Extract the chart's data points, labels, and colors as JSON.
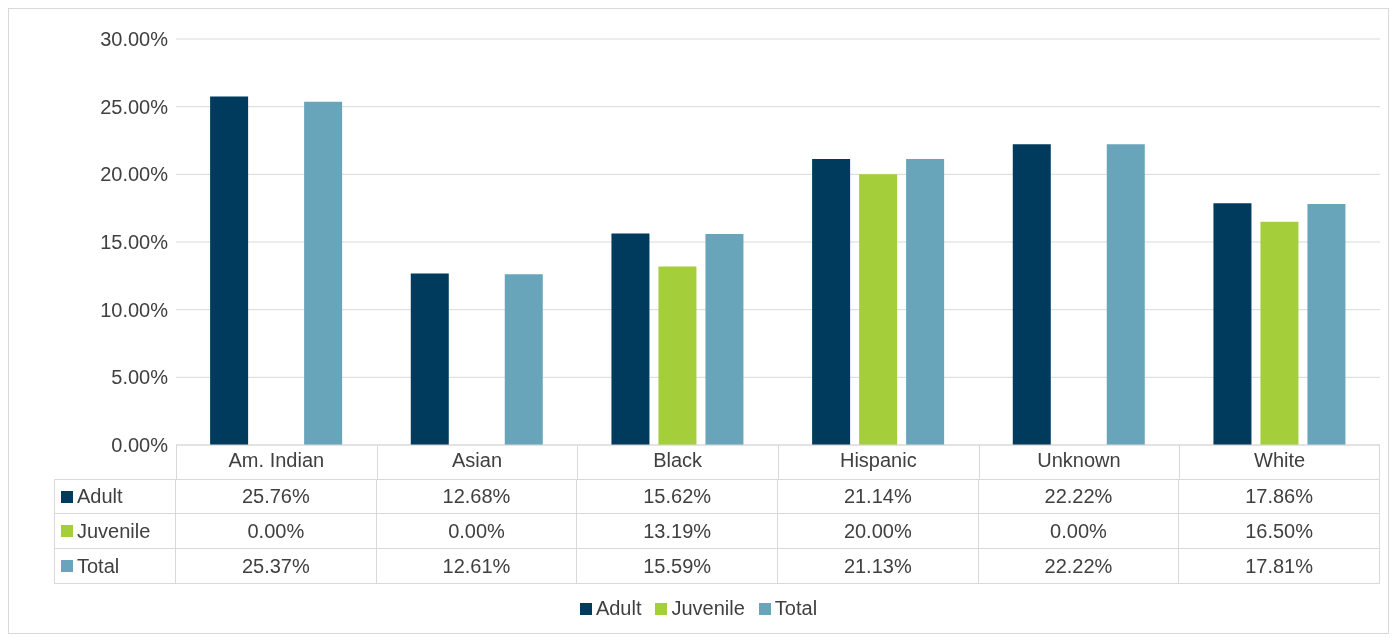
{
  "chart_data": {
    "type": "bar",
    "categories": [
      "Am. Indian",
      "Asian",
      "Black",
      "Hispanic",
      "Unknown",
      "White"
    ],
    "series": [
      {
        "name": "Adult",
        "color": "#003a5c",
        "values": [
          25.76,
          12.68,
          15.62,
          21.14,
          22.22,
          17.86
        ],
        "value_labels": [
          "25.76%",
          "12.68%",
          "15.62%",
          "21.14%",
          "22.22%",
          "17.86%"
        ]
      },
      {
        "name": "Juvenile",
        "color": "#a4cf3a",
        "values": [
          0,
          0,
          13.19,
          20,
          0,
          16.5
        ],
        "value_labels": [
          "0.00%",
          "0.00%",
          "13.19%",
          "20.00%",
          "0.00%",
          "16.50%"
        ]
      },
      {
        "name": "Total",
        "color": "#68a5bb",
        "values": [
          25.37,
          12.61,
          15.59,
          21.13,
          22.22,
          17.81
        ],
        "value_labels": [
          "25.37%",
          "12.61%",
          "15.59%",
          "21.13%",
          "22.22%",
          "17.81%"
        ]
      }
    ],
    "ylim": [
      0,
      30
    ],
    "yticks": [
      {
        "value": 0,
        "label": "0.00%"
      },
      {
        "value": 5,
        "label": "5.00%"
      },
      {
        "value": 10,
        "label": "10.00%"
      },
      {
        "value": 15,
        "label": "15.00%"
      },
      {
        "value": 20,
        "label": "20.00%"
      },
      {
        "value": 25,
        "label": "25.00%"
      },
      {
        "value": 30,
        "label": "30.00%"
      }
    ],
    "grid": "y",
    "legend": "bottom"
  }
}
